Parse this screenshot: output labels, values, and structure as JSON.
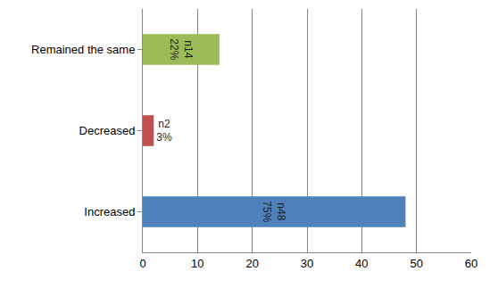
{
  "chart_data": {
    "type": "bar",
    "orientation": "horizontal",
    "categories": [
      "Increased",
      "Decreased",
      "Remained the same"
    ],
    "values": [
      48,
      2,
      14
    ],
    "value_labels": [
      "n48\n75%",
      "n2\n3%",
      "n14\n22%"
    ],
    "colors": [
      "#4f81bd",
      "#c0504d",
      "#9bbb59"
    ],
    "data_labels": true,
    "xlim": [
      0,
      60
    ],
    "xticks": [
      0,
      10,
      20,
      30,
      40,
      50,
      60
    ],
    "grid": true
  }
}
